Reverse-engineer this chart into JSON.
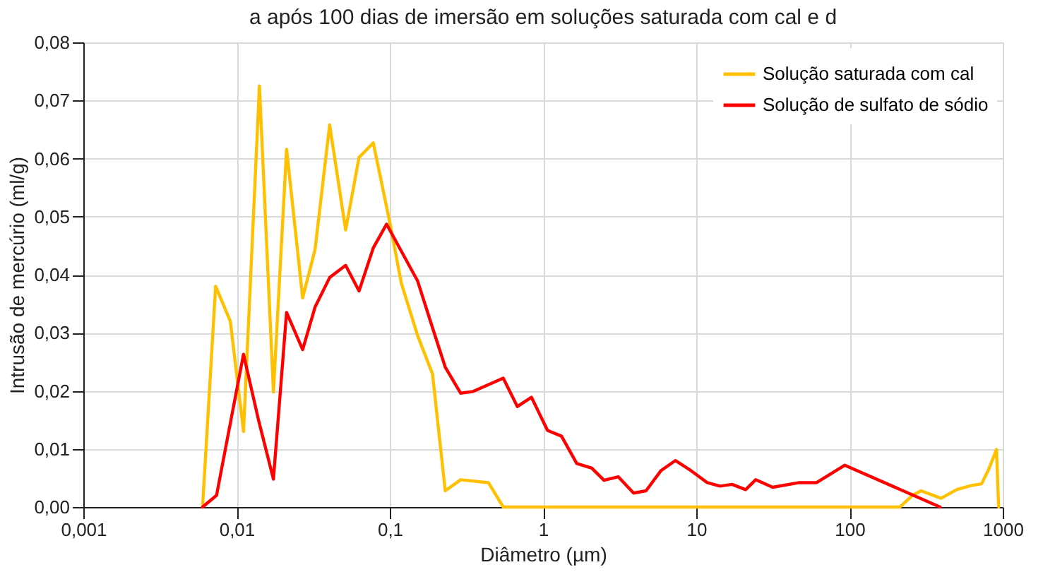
{
  "chart_data": {
    "type": "line",
    "title": "a após 100 dias de imersão em soluções saturada com cal e d",
    "xlabel": "Diâmetro  (µm)",
    "ylabel": "Intrusão de mercúrio  (ml/g)",
    "log": "x",
    "grid": true,
    "legend": "top right",
    "xlim": [
      0.001,
      1000
    ],
    "xticks": [
      {
        "value": 0.001,
        "label": "0,001"
      },
      {
        "value": 0.01,
        "label": "0,01"
      },
      {
        "value": 0.1,
        "label": "0,1"
      },
      1,
      10,
      100,
      1000
    ],
    "ylim": [
      0,
      0.08
    ],
    "yticks": [
      {
        "value": 0,
        "label": "0,00"
      },
      {
        "value": 0.01,
        "label": "0,01"
      },
      {
        "value": 0.02,
        "label": "0,02"
      },
      {
        "value": 0.03,
        "label": "0,03"
      },
      {
        "value": 0.04,
        "label": "0,04"
      },
      {
        "value": 0.05,
        "label": "0,05"
      },
      {
        "value": 0.06,
        "label": "0,06"
      },
      {
        "value": 0.07,
        "label": "0,07"
      },
      {
        "value": 0.08,
        "label": "0,08"
      }
    ],
    "series": [
      {
        "name": "Solução saturada com cal",
        "color": "#ffc000",
        "x": [
          0.006,
          0.0073,
          0.0091,
          0.0111,
          0.0141,
          0.0174,
          0.0212,
          0.027,
          0.0325,
          0.0405,
          0.0515,
          0.063,
          0.078,
          0.1,
          0.119,
          0.152,
          0.19,
          0.23,
          0.29,
          0.44,
          0.55,
          213,
          257,
          293,
          396,
          500,
          620,
          728,
          810,
          910,
          940
        ],
        "values": [
          0,
          0.038,
          0.032,
          0.013,
          0.0725,
          0.0198,
          0.0616,
          0.036,
          0.0443,
          0.0658,
          0.0477,
          0.0602,
          0.0627,
          0.049,
          0.0385,
          0.0295,
          0.0229,
          0.0028,
          0.0047,
          0.0042,
          0,
          0,
          0.002,
          0.0028,
          0.0015,
          0.003,
          0.0037,
          0.004,
          0.0065,
          0.0099,
          0
        ]
      },
      {
        "name": "Solução de sulfato de sódio",
        "color": "#ff0000",
        "x": [
          0.006,
          0.0074,
          0.0111,
          0.0139,
          0.0174,
          0.0212,
          0.027,
          0.0325,
          0.0405,
          0.0515,
          0.063,
          0.078,
          0.0953,
          0.152,
          0.193,
          0.23,
          0.29,
          0.35,
          0.55,
          0.68,
          0.84,
          1.07,
          1.32,
          1.66,
          2.08,
          2.5,
          3.1,
          3.9,
          4.7,
          5.9,
          7.3,
          9.2,
          11.8,
          14.3,
          17.1,
          21,
          24.4,
          31.5,
          47,
          61,
          93,
          390
        ],
        "values": [
          0,
          0.002,
          0.0263,
          0.015,
          0.0048,
          0.0335,
          0.0271,
          0.0344,
          0.0395,
          0.0416,
          0.0372,
          0.0446,
          0.0487,
          0.0389,
          0.0303,
          0.0241,
          0.0196,
          0.0199,
          0.0222,
          0.0173,
          0.0189,
          0.0132,
          0.0122,
          0.0075,
          0.0067,
          0.0046,
          0.0052,
          0.0024,
          0.0028,
          0.0063,
          0.008,
          0.0063,
          0.0042,
          0.0036,
          0.0039,
          0.003,
          0.0047,
          0.0034,
          0.0042,
          0.0042,
          0.0072,
          0
        ]
      }
    ]
  }
}
